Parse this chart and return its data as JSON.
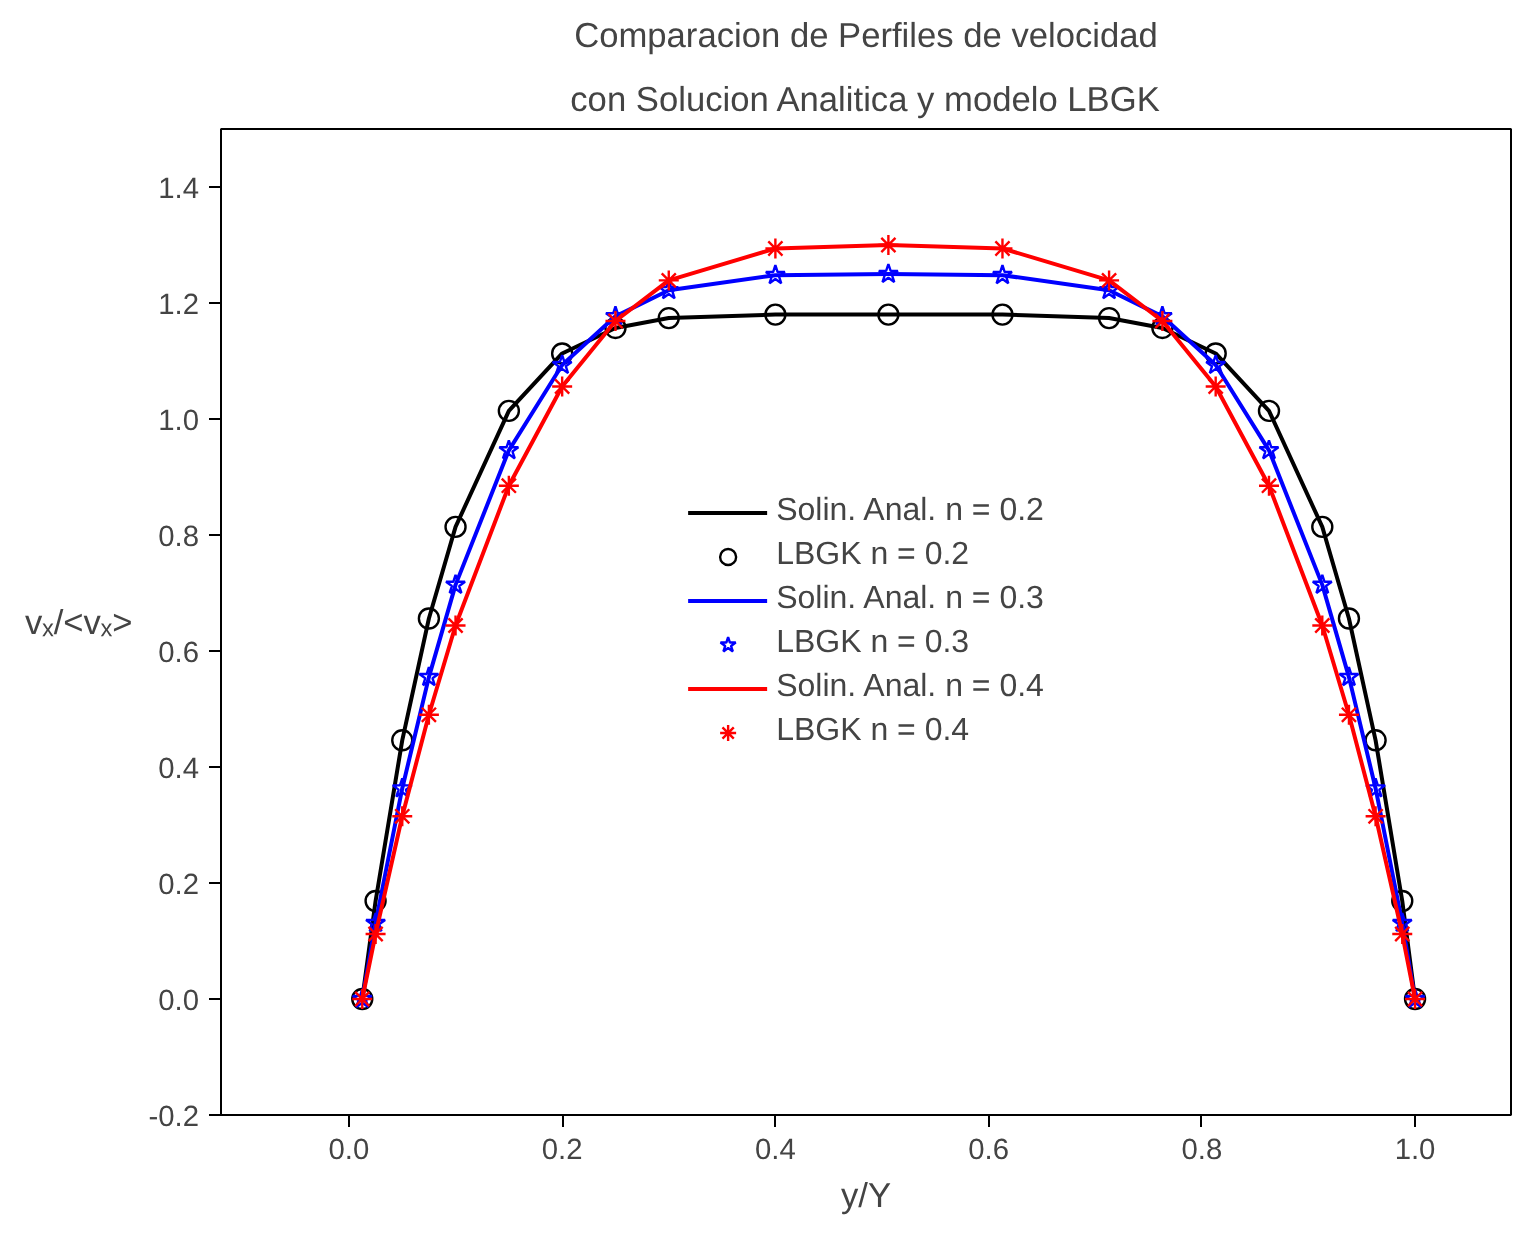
{
  "chart_data": {
    "type": "line",
    "title": "Comparacion de Perfiles de velocidad",
    "subtitle": "con Solucion Analitica y modelo LBGK",
    "xlabel": "y/Y",
    "ylabel": "vₓ/<vₓ>",
    "x": [
      0.0125,
      0.025,
      0.05,
      0.075,
      0.1,
      0.15,
      0.2,
      0.25,
      0.3,
      0.4,
      0.506,
      0.613,
      0.713,
      0.763,
      0.813,
      0.863,
      0.913,
      0.938,
      0.963,
      0.988,
      1.0
    ],
    "series": [
      {
        "name": "Solin. Anal. n = 0.2",
        "color": "#000000",
        "marker": "none",
        "values": [
          0,
          0.169,
          0.446,
          0.656,
          0.814,
          1.014,
          1.113,
          1.157,
          1.174,
          1.18,
          1.18,
          1.18,
          1.174,
          1.157,
          1.113,
          1.014,
          0.814,
          0.656,
          0.446,
          0.169,
          0
        ]
      },
      {
        "name": "LBGK n = 0.2",
        "type": "scatter",
        "color": "#000000",
        "marker": "circle",
        "values": [
          0,
          0.169,
          0.446,
          0.656,
          0.814,
          1.014,
          1.113,
          1.157,
          1.174,
          1.18,
          1.18,
          1.18,
          1.174,
          1.157,
          1.113,
          1.014,
          0.814,
          0.656,
          0.446,
          0.169,
          0
        ]
      },
      {
        "name": "Solin. Anal. n = 0.3",
        "color": "#0000ff",
        "marker": "none",
        "values": [
          0,
          0.131,
          0.363,
          0.555,
          0.714,
          0.946,
          1.093,
          1.177,
          1.222,
          1.248,
          1.25,
          1.248,
          1.222,
          1.177,
          1.093,
          0.946,
          0.714,
          0.555,
          0.363,
          0.131,
          0
        ]
      },
      {
        "name": "LBGK n = 0.3",
        "type": "scatter",
        "color": "#0000ff",
        "marker": "star",
        "values": [
          0,
          0.131,
          0.363,
          0.555,
          0.714,
          0.946,
          1.093,
          1.177,
          1.222,
          1.248,
          1.25,
          1.248,
          1.222,
          1.177,
          1.093,
          0.946,
          0.714,
          0.555,
          0.363,
          0.131,
          0
        ]
      },
      {
        "name": "Solin. Anal. n = 0.4",
        "color": "#ff0000",
        "marker": "none",
        "values": [
          0,
          0.112,
          0.315,
          0.49,
          0.644,
          0.885,
          1.056,
          1.169,
          1.239,
          1.294,
          1.3,
          1.294,
          1.239,
          1.169,
          1.056,
          0.885,
          0.644,
          0.49,
          0.315,
          0.112,
          0
        ]
      },
      {
        "name": "LBGK n = 0.4",
        "type": "scatter",
        "color": "#ff0000",
        "marker": "cross",
        "values": [
          0,
          0.112,
          0.315,
          0.49,
          0.644,
          0.885,
          1.056,
          1.169,
          1.239,
          1.294,
          1.3,
          1.294,
          1.239,
          1.169,
          1.056,
          0.885,
          0.644,
          0.49,
          0.315,
          0.112,
          0
        ]
      }
    ],
    "xlim": [
      -0.12,
      1.09
    ],
    "ylim": [
      -0.2,
      1.5
    ],
    "xticks": [
      {
        "value": 0,
        "label": "0.0"
      },
      0.2,
      0.4,
      0.6,
      0.8,
      {
        "value": 1,
        "label": "1.0"
      }
    ],
    "yticks": [
      -0.2,
      {
        "value": 0,
        "label": "0.0"
      },
      0.2,
      0.4,
      0.6,
      0.8,
      {
        "value": 1,
        "label": "1.0"
      },
      1.2,
      1.4
    ],
    "grid": false,
    "legend": "center",
    "line_style": "solid"
  }
}
